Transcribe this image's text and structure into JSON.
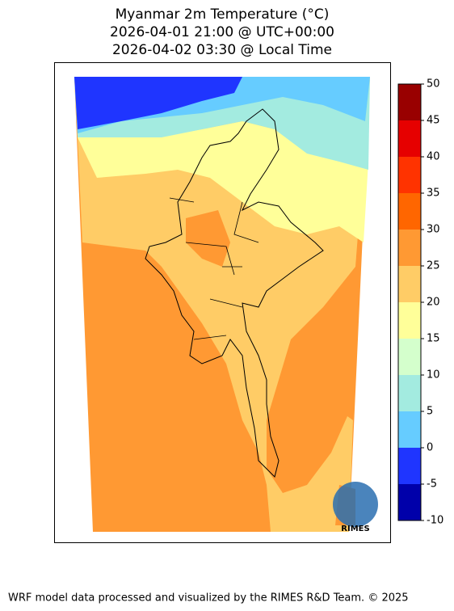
{
  "title": [
    "Myanmar 2m Temperature (°C)",
    "2026-04-01 21:00 @ UTC+00:00",
    "2026-04-02 03:30 @ Local Time"
  ],
  "colorbar": {
    "lim": [
      -10,
      50
    ],
    "ticks": [
      -10,
      -5,
      0,
      5,
      10,
      15,
      20,
      25,
      30,
      35,
      40,
      45,
      50
    ],
    "colors": [
      "#0000aa",
      "#1f35ff",
      "#66ccff",
      "#a3ebe0",
      "#d4ffcc",
      "#ffff99",
      "#ffcc66",
      "#ff9933",
      "#ff6600",
      "#ff3300",
      "#e60000",
      "#990000"
    ]
  },
  "logo": "RIMES",
  "footer": "WRF model data processed and visualized by the RIMES R&D Team. © 2025"
}
